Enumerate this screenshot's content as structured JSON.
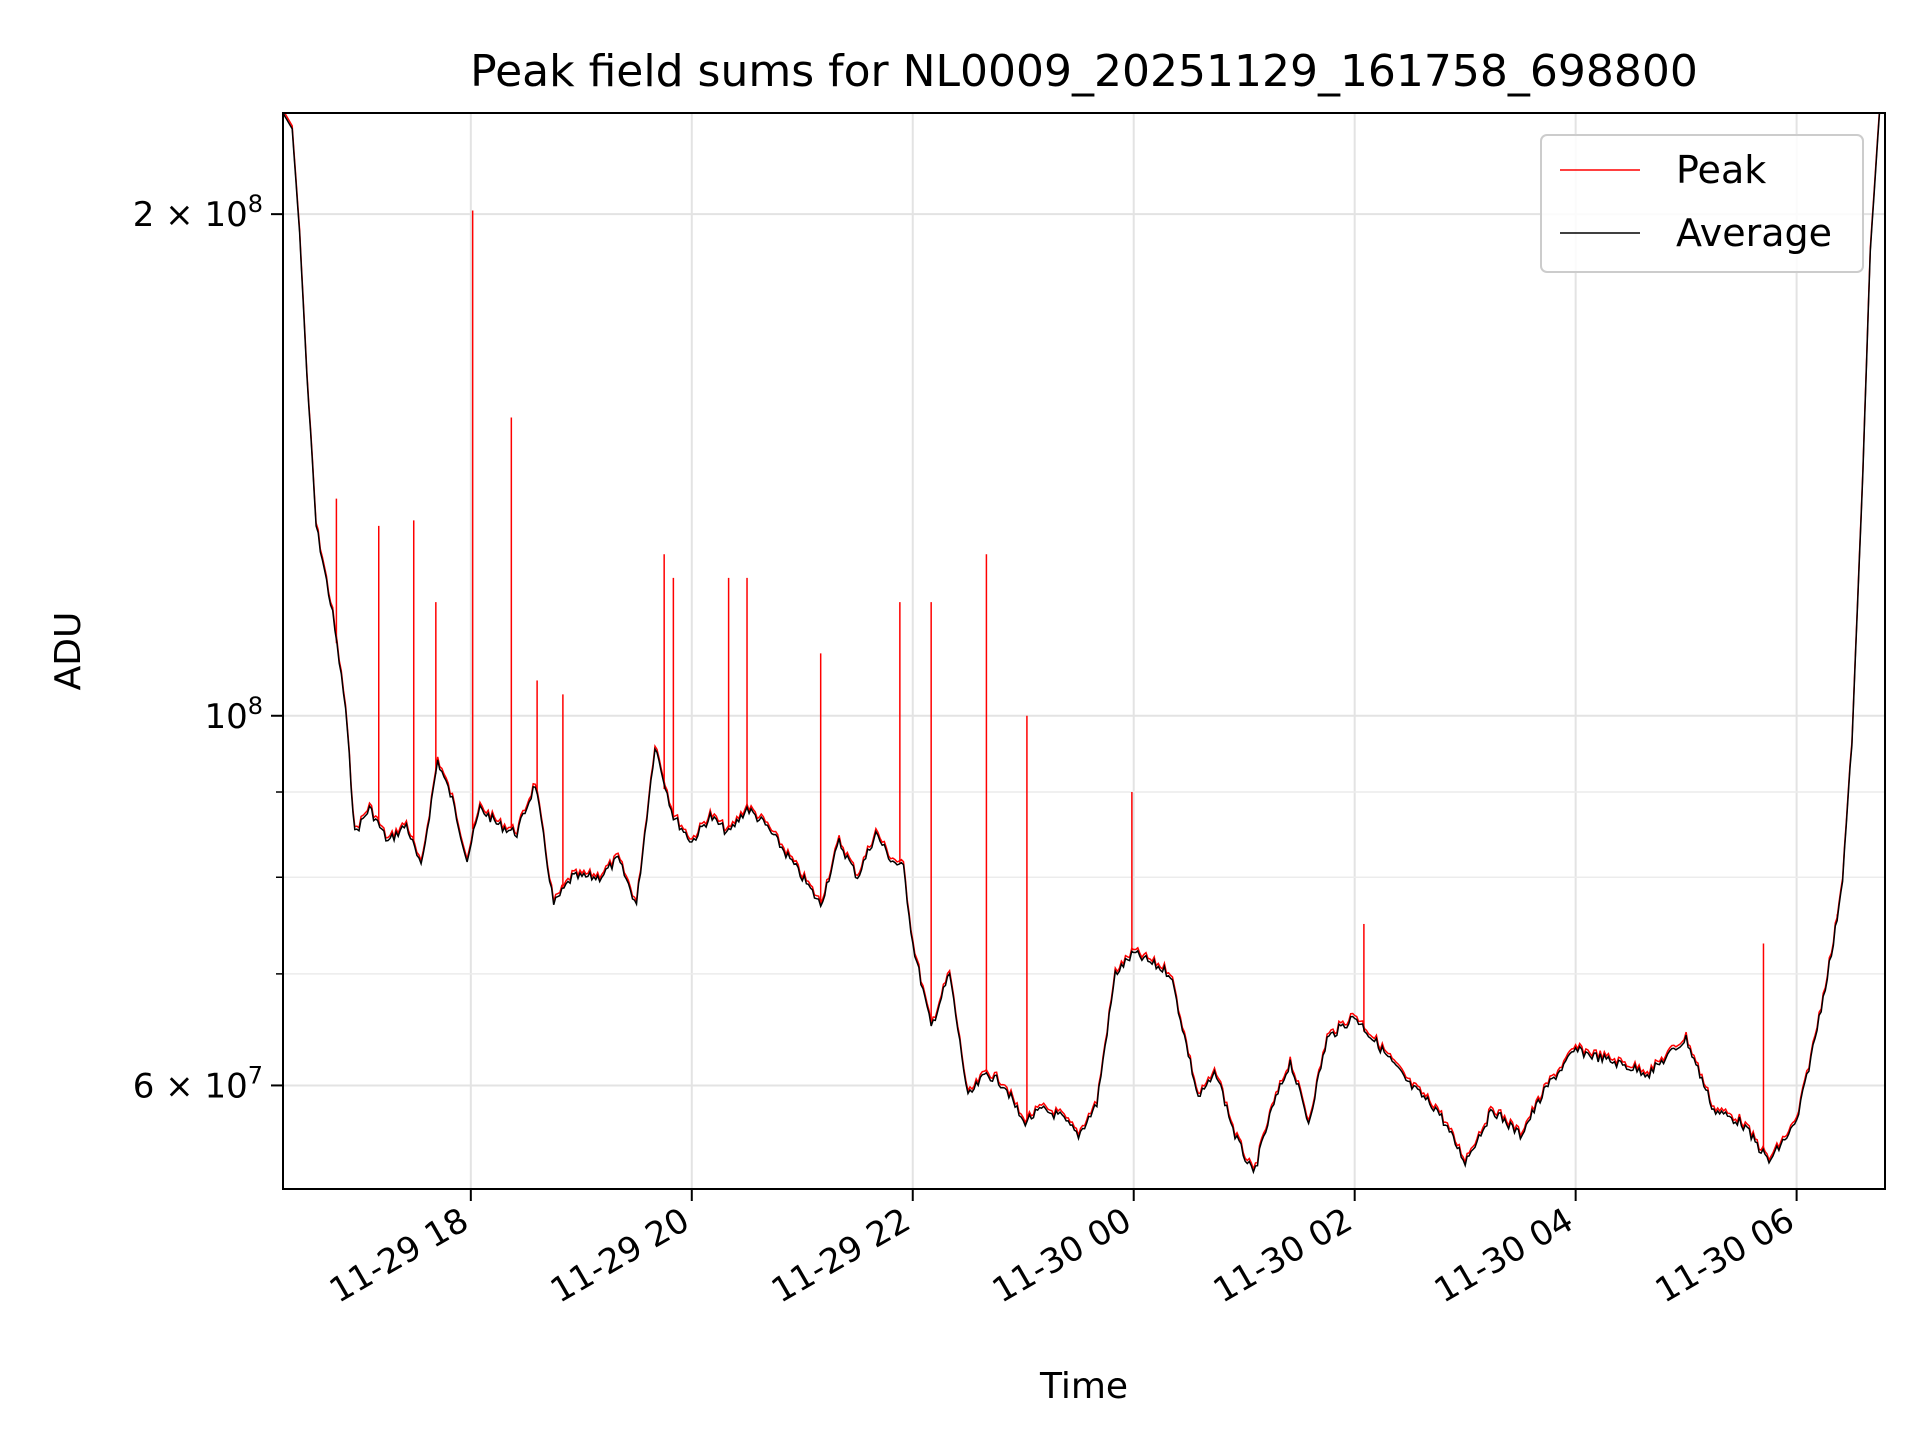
{
  "chart_data": {
    "type": "line",
    "title": "Peak field sums for NL0009_20251129_161758_698800",
    "xlabel": "Time",
    "ylabel": "ADU",
    "y_scale": "log",
    "ylim": [
      52000000,
      230000000
    ],
    "xlim": [
      "2025-11-29 16:18",
      "2025-11-30 06:48"
    ],
    "x_ticks": [
      {
        "t": "2025-11-29 18:00",
        "label": "11-29 18"
      },
      {
        "t": "2025-11-29 20:00",
        "label": "11-29 20"
      },
      {
        "t": "2025-11-29 22:00",
        "label": "11-29 22"
      },
      {
        "t": "2025-11-30 00:00",
        "label": "11-30 00"
      },
      {
        "t": "2025-11-30 02:00",
        "label": "11-30 02"
      },
      {
        "t": "2025-11-30 04:00",
        "label": "11-30 04"
      },
      {
        "t": "2025-11-30 06:00",
        "label": "11-30 06"
      }
    ],
    "y_major_ticks": [
      {
        "v": 60000000,
        "mant": "6",
        "exp": "7"
      },
      {
        "v": 100000000,
        "mant": "",
        "exp": "8"
      },
      {
        "v": 200000000,
        "mant": "2",
        "exp": "8"
      }
    ],
    "y_minor_ticks": [
      70000000,
      80000000,
      90000000
    ],
    "grid": true,
    "legend": "top-right",
    "series": [
      {
        "name": "Average",
        "color": "#000000",
        "points": [
          [
            "2025-11-29 16:18",
            230000000
          ],
          [
            "2025-11-29 16:23",
            225000000
          ],
          [
            "2025-11-29 16:27",
            195000000
          ],
          [
            "2025-11-29 16:31",
            160000000
          ],
          [
            "2025-11-29 16:36",
            130000000
          ],
          [
            "2025-11-29 16:45",
            115000000
          ],
          [
            "2025-11-29 16:52",
            101000000
          ],
          [
            "2025-11-29 16:57",
            85000000
          ],
          [
            "2025-11-29 17:05",
            88000000
          ],
          [
            "2025-11-29 17:15",
            84000000
          ],
          [
            "2025-11-29 17:25",
            86000000
          ],
          [
            "2025-11-29 17:33",
            81000000
          ],
          [
            "2025-11-29 17:42",
            94000000
          ],
          [
            "2025-11-29 17:50",
            89000000
          ],
          [
            "2025-11-29 17:58",
            82000000
          ],
          [
            "2025-11-29 18:05",
            88000000
          ],
          [
            "2025-11-29 18:15",
            86000000
          ],
          [
            "2025-11-29 18:25",
            85000000
          ],
          [
            "2025-11-29 18:35",
            91000000
          ],
          [
            "2025-11-29 18:45",
            77000000
          ],
          [
            "2025-11-29 18:55",
            80000000
          ],
          [
            "2025-11-29 19:10",
            80000000
          ],
          [
            "2025-11-29 19:20",
            82000000
          ],
          [
            "2025-11-29 19:30",
            77000000
          ],
          [
            "2025-11-29 19:40",
            96000000
          ],
          [
            "2025-11-29 19:50",
            87000000
          ],
          [
            "2025-11-29 20:00",
            84000000
          ],
          [
            "2025-11-29 20:10",
            87000000
          ],
          [
            "2025-11-29 20:20",
            85000000
          ],
          [
            "2025-11-29 20:30",
            88000000
          ],
          [
            "2025-11-29 20:40",
            86000000
          ],
          [
            "2025-11-29 20:50",
            83000000
          ],
          [
            "2025-11-29 21:00",
            80000000
          ],
          [
            "2025-11-29 21:10",
            77000000
          ],
          [
            "2025-11-29 21:20",
            84000000
          ],
          [
            "2025-11-29 21:30",
            80000000
          ],
          [
            "2025-11-29 21:40",
            85000000
          ],
          [
            "2025-11-29 21:48",
            82000000
          ],
          [
            "2025-11-29 21:55",
            81000000
          ],
          [
            "2025-11-29 22:00",
            73000000
          ],
          [
            "2025-11-29 22:10",
            65000000
          ],
          [
            "2025-11-29 22:20",
            70000000
          ],
          [
            "2025-11-29 22:30",
            59000000
          ],
          [
            "2025-11-29 22:40",
            61000000
          ],
          [
            "2025-11-29 22:50",
            60000000
          ],
          [
            "2025-11-29 23:00",
            57000000
          ],
          [
            "2025-11-29 23:10",
            58000000
          ],
          [
            "2025-11-29 23:20",
            57500000
          ],
          [
            "2025-11-29 23:30",
            56000000
          ],
          [
            "2025-11-29 23:40",
            58500000
          ],
          [
            "2025-11-29 23:50",
            70000000
          ],
          [
            "2025-11-30 00:00",
            72000000
          ],
          [
            "2025-11-30 00:20",
            70000000
          ],
          [
            "2025-11-30 00:35",
            59000000
          ],
          [
            "2025-11-30 00:45",
            61000000
          ],
          [
            "2025-11-30 00:55",
            56000000
          ],
          [
            "2025-11-30 01:05",
            53000000
          ],
          [
            "2025-11-30 01:15",
            58000000
          ],
          [
            "2025-11-30 01:25",
            62000000
          ],
          [
            "2025-11-30 01:35",
            57000000
          ],
          [
            "2025-11-30 01:45",
            64000000
          ],
          [
            "2025-11-30 02:00",
            66000000
          ],
          [
            "2025-11-30 02:15",
            63000000
          ],
          [
            "2025-11-30 02:30",
            60000000
          ],
          [
            "2025-11-30 02:45",
            58000000
          ],
          [
            "2025-11-30 03:00",
            54000000
          ],
          [
            "2025-11-30 03:15",
            58000000
          ],
          [
            "2025-11-30 03:30",
            56000000
          ],
          [
            "2025-11-30 03:45",
            60000000
          ],
          [
            "2025-11-30 04:00",
            63000000
          ],
          [
            "2025-11-30 04:20",
            62000000
          ],
          [
            "2025-11-30 04:40",
            61000000
          ],
          [
            "2025-11-30 05:00",
            64000000
          ],
          [
            "2025-11-30 05:15",
            58000000
          ],
          [
            "2025-11-30 05:30",
            57000000
          ],
          [
            "2025-11-30 05:45",
            54000000
          ],
          [
            "2025-11-30 06:00",
            57000000
          ],
          [
            "2025-11-30 06:10",
            64000000
          ],
          [
            "2025-11-30 06:20",
            73000000
          ],
          [
            "2025-11-30 06:25",
            80000000
          ],
          [
            "2025-11-30 06:30",
            96000000
          ],
          [
            "2025-11-30 06:36",
            140000000
          ],
          [
            "2025-11-30 06:40",
            190000000
          ],
          [
            "2025-11-30 06:45",
            230000000
          ]
        ]
      },
      {
        "name": "Peak",
        "color": "#ff0000",
        "spikes": [
          [
            "2025-11-29 16:47",
            135000000
          ],
          [
            "2025-11-29 17:10",
            130000000
          ],
          [
            "2025-11-29 17:29",
            131000000
          ],
          [
            "2025-11-29 17:41",
            117000000
          ],
          [
            "2025-11-29 18:01",
            201000000
          ],
          [
            "2025-11-29 18:22",
            151000000
          ],
          [
            "2025-11-29 18:36",
            105000000
          ],
          [
            "2025-11-29 18:50",
            103000000
          ],
          [
            "2025-11-29 19:45",
            125000000
          ],
          [
            "2025-11-29 19:50",
            121000000
          ],
          [
            "2025-11-29 20:20",
            121000000
          ],
          [
            "2025-11-29 20:30",
            121000000
          ],
          [
            "2025-11-29 21:10",
            109000000
          ],
          [
            "2025-11-29 21:53",
            117000000
          ],
          [
            "2025-11-29 22:10",
            117000000
          ],
          [
            "2025-11-29 22:40",
            125000000
          ],
          [
            "2025-11-29 23:02",
            100000000
          ],
          [
            "2025-11-29 23:59",
            90000000
          ],
          [
            "2025-11-30 02:05",
            75000000
          ],
          [
            "2025-11-30 05:42",
            73000000
          ],
          [
            "2025-11-30 06:22",
            76000000
          ]
        ]
      }
    ]
  }
}
